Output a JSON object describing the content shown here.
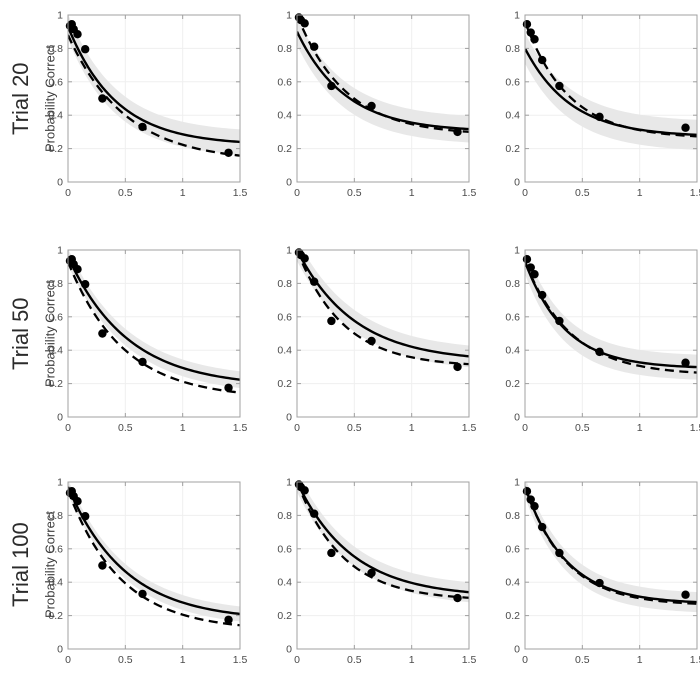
{
  "figure": {
    "background": "#ffffff",
    "axis_color": "#a0a0a0",
    "grid_color": "#efefef",
    "band_color": "#e8e8e8",
    "curve_color": "#000000",
    "dot_color": "#000000"
  },
  "chart_data": {
    "type": "line",
    "title": "",
    "ylabel": "Probability Correct",
    "xlabel": "",
    "xlim": [
      0,
      1.5
    ],
    "ylim": [
      0,
      1
    ],
    "x_tick_values": [
      0,
      0.5,
      1,
      1.5
    ],
    "x_tick_labels": [
      "0",
      "0.5",
      "1",
      "1.5"
    ],
    "y_tick_values": [
      0,
      0.2,
      0.4,
      0.6,
      0.8,
      1
    ],
    "y_tick_labels": [
      "0",
      "0.2",
      "0.4",
      "0.6",
      "0.8",
      "1"
    ],
    "grid": true,
    "curve_model": "y = yinf + (y0 - yinf) * exp(-x / tau)",
    "rows": [
      {
        "label": "Trial 20",
        "panels": [
          {
            "points": [
              [
                0.017,
                0.935
              ],
              [
                0.033,
                0.945
              ],
              [
                0.05,
                0.915
              ],
              [
                0.083,
                0.885
              ],
              [
                0.15,
                0.795
              ],
              [
                0.3,
                0.5
              ],
              [
                0.65,
                0.33
              ],
              [
                1.4,
                0.175
              ]
            ],
            "solid_fit": {
              "y0": 0.93,
              "yinf": 0.22,
              "tau": 0.42
            },
            "dashed_fit": {
              "y0": 0.88,
              "yinf": 0.12,
              "tau": 0.5
            },
            "band_halfwidth": 0.075
          },
          {
            "points": [
              [
                0.017,
                0.985
              ],
              [
                0.033,
                0.97
              ],
              [
                0.067,
                0.95
              ],
              [
                0.15,
                0.81
              ],
              [
                0.3,
                0.575
              ],
              [
                0.65,
                0.455
              ],
              [
                1.4,
                0.3
              ]
            ],
            "solid_fit": {
              "y0": 0.9,
              "yinf": 0.3,
              "tau": 0.42
            },
            "dashed_fit": {
              "y0": 1.0,
              "yinf": 0.28,
              "tau": 0.42
            },
            "band_halfwidth": 0.08
          },
          {
            "points": [
              [
                0.017,
                0.945
              ],
              [
                0.05,
                0.895
              ],
              [
                0.083,
                0.855
              ],
              [
                0.15,
                0.73
              ],
              [
                0.3,
                0.575
              ],
              [
                0.65,
                0.39
              ],
              [
                1.4,
                0.325
              ]
            ],
            "solid_fit": {
              "y0": 0.8,
              "yinf": 0.27,
              "tau": 0.4
            },
            "dashed_fit": {
              "y0": 0.96,
              "yinf": 0.26,
              "tau": 0.38
            },
            "band_halfwidth": 0.09
          }
        ]
      },
      {
        "label": "Trial 50",
        "panels": [
          {
            "points": [
              [
                0.017,
                0.935
              ],
              [
                0.033,
                0.945
              ],
              [
                0.05,
                0.915
              ],
              [
                0.083,
                0.885
              ],
              [
                0.15,
                0.795
              ],
              [
                0.3,
                0.5
              ],
              [
                0.65,
                0.33
              ],
              [
                1.4,
                0.175
              ]
            ],
            "solid_fit": {
              "y0": 0.96,
              "yinf": 0.18,
              "tau": 0.52
            },
            "dashed_fit": {
              "y0": 0.93,
              "yinf": 0.11,
              "tau": 0.48
            },
            "band_halfwidth": 0.05
          },
          {
            "points": [
              [
                0.017,
                0.985
              ],
              [
                0.033,
                0.97
              ],
              [
                0.067,
                0.95
              ],
              [
                0.15,
                0.81
              ],
              [
                0.3,
                0.575
              ],
              [
                0.65,
                0.455
              ],
              [
                1.4,
                0.3
              ]
            ],
            "solid_fit": {
              "y0": 1.0,
              "yinf": 0.33,
              "tau": 0.5
            },
            "dashed_fit": {
              "y0": 1.0,
              "yinf": 0.3,
              "tau": 0.4
            },
            "band_halfwidth": 0.065
          },
          {
            "points": [
              [
                0.017,
                0.945
              ],
              [
                0.05,
                0.895
              ],
              [
                0.083,
                0.855
              ],
              [
                0.15,
                0.73
              ],
              [
                0.3,
                0.575
              ],
              [
                0.65,
                0.39
              ],
              [
                1.4,
                0.325
              ]
            ],
            "solid_fit": {
              "y0": 0.93,
              "yinf": 0.29,
              "tau": 0.35
            },
            "dashed_fit": {
              "y0": 0.93,
              "yinf": 0.25,
              "tau": 0.4
            },
            "band_halfwidth": 0.075
          }
        ]
      },
      {
        "label": "Trial 100",
        "panels": [
          {
            "points": [
              [
                0.017,
                0.935
              ],
              [
                0.033,
                0.945
              ],
              [
                0.05,
                0.915
              ],
              [
                0.083,
                0.885
              ],
              [
                0.15,
                0.795
              ],
              [
                0.3,
                0.5
              ],
              [
                0.65,
                0.33
              ],
              [
                1.4,
                0.175
              ]
            ],
            "solid_fit": {
              "y0": 0.97,
              "yinf": 0.17,
              "tau": 0.5
            },
            "dashed_fit": {
              "y0": 0.95,
              "yinf": 0.11,
              "tau": 0.46
            },
            "band_halfwidth": 0.045
          },
          {
            "points": [
              [
                0.017,
                0.985
              ],
              [
                0.033,
                0.97
              ],
              [
                0.067,
                0.95
              ],
              [
                0.15,
                0.81
              ],
              [
                0.3,
                0.575
              ],
              [
                0.65,
                0.455
              ],
              [
                1.4,
                0.305
              ]
            ],
            "solid_fit": {
              "y0": 1.0,
              "yinf": 0.31,
              "tau": 0.48
            },
            "dashed_fit": {
              "y0": 1.0,
              "yinf": 0.29,
              "tau": 0.4
            },
            "band_halfwidth": 0.06
          },
          {
            "points": [
              [
                0.017,
                0.945
              ],
              [
                0.05,
                0.895
              ],
              [
                0.083,
                0.855
              ],
              [
                0.15,
                0.73
              ],
              [
                0.3,
                0.575
              ],
              [
                0.65,
                0.395
              ],
              [
                1.4,
                0.325
              ]
            ],
            "solid_fit": {
              "y0": 0.97,
              "yinf": 0.27,
              "tau": 0.36
            },
            "dashed_fit": {
              "y0": 0.97,
              "yinf": 0.26,
              "tau": 0.36
            },
            "band_halfwidth": 0.06
          }
        ]
      }
    ]
  }
}
